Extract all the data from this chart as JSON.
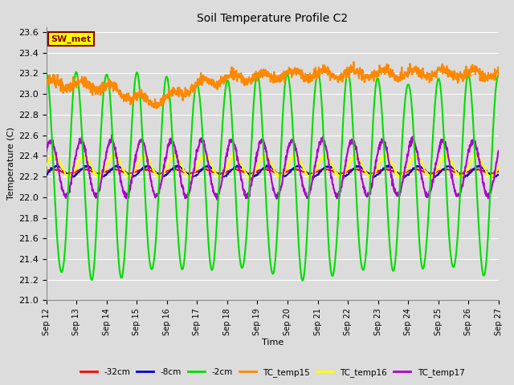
{
  "title": "Soil Temperature Profile C2",
  "xlabel": "Time",
  "ylabel": "Temperature (C)",
  "ylim": [
    21.0,
    23.65
  ],
  "yticks": [
    21.0,
    21.2,
    21.4,
    21.6,
    21.8,
    22.0,
    22.2,
    22.4,
    22.6,
    22.8,
    23.0,
    23.2,
    23.4,
    23.6
  ],
  "bg_color": "#dcdcdc",
  "plot_bg_color": "#dcdcdc",
  "legend_label": "SW_met",
  "legend_box_color": "#ffff00",
  "legend_box_edge": "#8B0000",
  "colors": {
    "-32cm": "#ff0000",
    "-8cm": "#0000cc",
    "-2cm": "#00dd00",
    "TC_temp15": "#ff8800",
    "TC_temp16": "#ffff00",
    "TC_temp17": "#aa00cc"
  },
  "line_widths": {
    "-32cm": 1.2,
    "-8cm": 1.2,
    "-2cm": 1.5,
    "TC_temp15": 1.5,
    "TC_temp16": 1.5,
    "TC_temp17": 1.5
  },
  "xtick_labels": [
    "Sep 12",
    "Sep 13",
    "Sep 14",
    "Sep 15",
    "Sep 16",
    "Sep 17",
    "Sep 18",
    "Sep 19",
    "Sep 20",
    "Sep 21",
    "Sep 22",
    "Sep 23",
    "Sep 24",
    "Sep 25",
    "Sep 26",
    "Sep 27"
  ],
  "n_days": 15,
  "start_day": 12
}
